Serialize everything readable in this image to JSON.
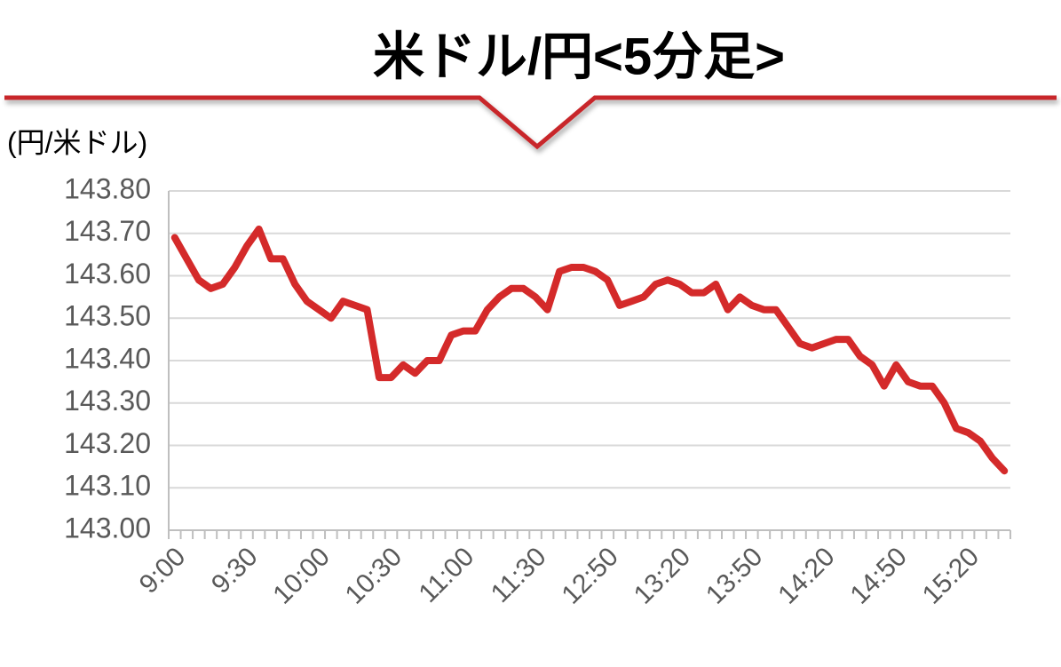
{
  "chart_data": {
    "type": "line",
    "title": "米ドル/円<5分足>",
    "y_label": "(円/米ドル)",
    "categories": [
      "9:00",
      null,
      null,
      null,
      null,
      null,
      "9:30",
      null,
      null,
      null,
      null,
      null,
      "10:00",
      null,
      null,
      null,
      null,
      null,
      "10:30",
      null,
      null,
      null,
      null,
      null,
      "11:00",
      null,
      null,
      null,
      null,
      null,
      "11:30",
      null,
      null,
      null,
      null,
      null,
      "12:50",
      null,
      null,
      null,
      null,
      null,
      "13:20",
      null,
      null,
      null,
      null,
      null,
      "13:50",
      null,
      null,
      null,
      null,
      null,
      "14:20",
      null,
      null,
      null,
      null,
      null,
      "14:50",
      null,
      null,
      null,
      null,
      null,
      "15:20",
      null,
      null,
      null
    ],
    "values": [
      143.69,
      143.64,
      143.59,
      143.57,
      143.58,
      143.62,
      143.67,
      143.71,
      143.64,
      143.64,
      143.58,
      143.54,
      143.52,
      143.5,
      143.54,
      143.53,
      143.52,
      143.36,
      143.36,
      143.39,
      143.37,
      143.4,
      143.4,
      143.46,
      143.47,
      143.47,
      143.52,
      143.55,
      143.57,
      143.57,
      143.55,
      143.52,
      143.61,
      143.62,
      143.62,
      143.61,
      143.59,
      143.53,
      143.54,
      143.55,
      143.58,
      143.59,
      143.58,
      143.56,
      143.56,
      143.58,
      143.52,
      143.55,
      143.53,
      143.52,
      143.52,
      143.48,
      143.44,
      143.43,
      143.44,
      143.45,
      143.45,
      143.41,
      143.39,
      143.34,
      143.39,
      143.35,
      143.34,
      143.34,
      143.3,
      143.24,
      143.23,
      143.21,
      143.17,
      143.14
    ],
    "color": "#d42a2a",
    "ylim": [
      143.0,
      143.8
    ],
    "yticks": [
      {
        "value": 143.0,
        "label": "143.00"
      },
      {
        "value": 143.1,
        "label": "143.10"
      },
      {
        "value": 143.2,
        "label": "143.20"
      },
      {
        "value": 143.3,
        "label": "143.30"
      },
      {
        "value": 143.4,
        "label": "143.40"
      },
      {
        "value": 143.5,
        "label": "143.50"
      },
      {
        "value": 143.6,
        "label": "143.60"
      },
      {
        "value": 143.7,
        "label": "143.70"
      },
      {
        "value": 143.8,
        "label": "143.80"
      }
    ],
    "grid": true
  }
}
